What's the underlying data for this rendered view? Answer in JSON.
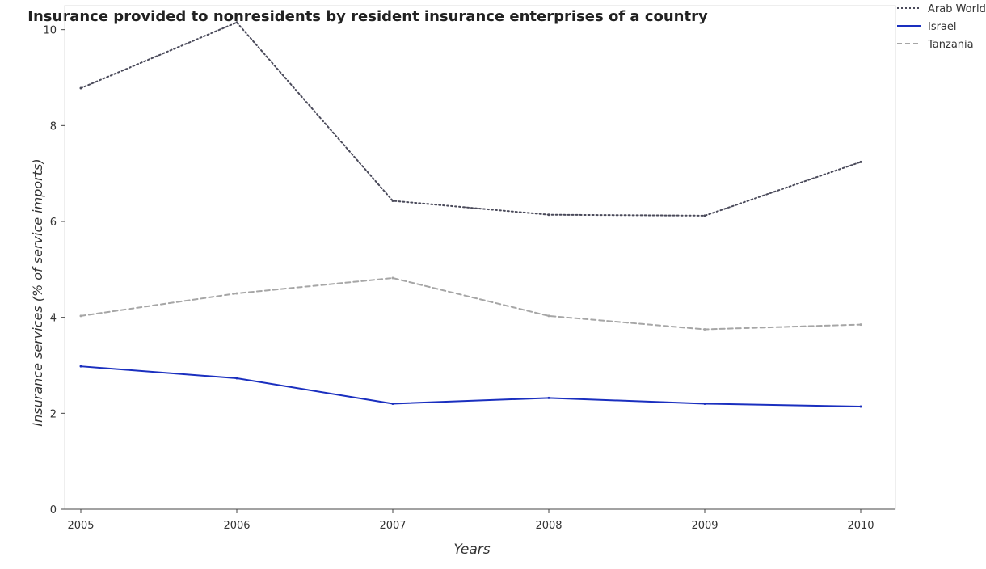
{
  "chart_data": {
    "type": "line",
    "title": "Insurance provided to nonresidents by resident insurance enterprises of a country",
    "xlabel": "Years",
    "ylabel": "Insurance services (% of service imports)",
    "x": [
      "2005",
      "2006",
      "2007",
      "2008",
      "2009",
      "2010"
    ],
    "ylim": [
      0,
      10.5
    ],
    "yticks": [
      "0",
      "2",
      "4",
      "6",
      "8",
      "10"
    ],
    "ytick_values": [
      0,
      2,
      4,
      6,
      8,
      10
    ],
    "grid": false,
    "legend_position": "top-right",
    "series": [
      {
        "name": "Arab World",
        "color": "#4a4a5a",
        "dash": "dotted",
        "values": [
          8.78,
          10.15,
          6.43,
          6.14,
          6.12,
          7.24
        ]
      },
      {
        "name": "Israel",
        "color": "#1a2fbf",
        "dash": "solid",
        "values": [
          2.98,
          2.73,
          2.2,
          2.32,
          2.2,
          2.14
        ]
      },
      {
        "name": "Tanzania",
        "color": "#a6a6a6",
        "dash": "dashed",
        "values": [
          4.03,
          4.5,
          4.82,
          4.03,
          3.75,
          3.85
        ]
      }
    ]
  }
}
